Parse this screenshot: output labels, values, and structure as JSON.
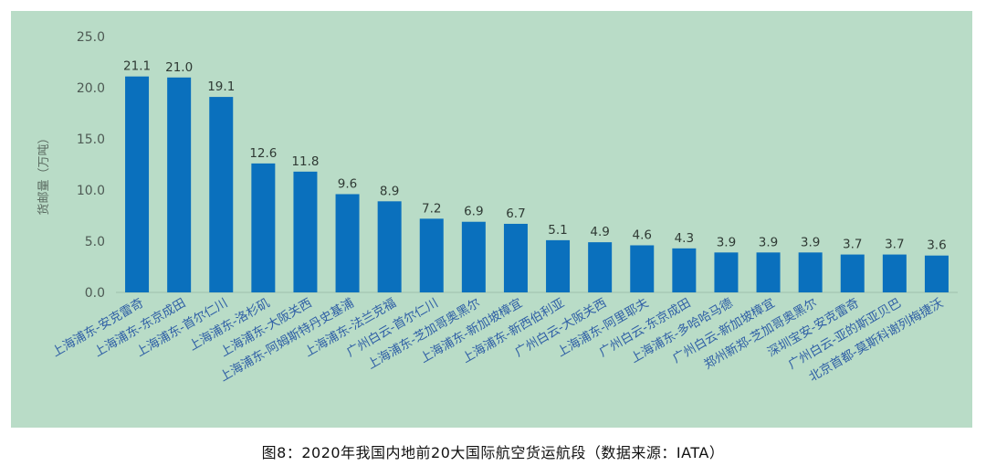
{
  "caption": "图8：2020年我国内地前20大国际航空货运航段（数据来源：IATA）",
  "chart_data": {
    "type": "bar",
    "title": "",
    "xlabel": "",
    "ylabel": "货邮量（万吨）",
    "ylim": [
      0,
      25
    ],
    "yticks": [
      "0.0",
      "5.0",
      "10.0",
      "15.0",
      "20.0",
      "25.0"
    ],
    "grid": false,
    "bar_color": "#0a70bd",
    "categories": [
      "上海浦东-安克雷奇",
      "上海浦东-东京成田",
      "上海浦东-首尔仁川",
      "上海浦东-洛杉矶",
      "上海浦东-大阪关西",
      "上海浦东-阿姆斯特丹史基浦",
      "上海浦东-法兰克福",
      "广州白云-首尔仁川",
      "上海浦东-芝加哥奥黑尔",
      "上海浦东-新加坡樟宜",
      "上海浦东-新西伯利亚",
      "广州白云-大阪关西",
      "上海浦东-阿里耶夫",
      "广州白云-东京成田",
      "上海浦东-多哈哈马德",
      "广州白云-新加坡樟宜",
      "郑州新郑-芝加哥奥黑尔",
      "深圳宝安-安克雷奇",
      "广州白云-亚的斯亚贝巴",
      "北京首都-莫斯科谢列梅捷沃"
    ],
    "values": [
      21.1,
      21.0,
      19.1,
      12.6,
      11.8,
      9.6,
      8.9,
      7.2,
      6.9,
      6.7,
      5.1,
      4.9,
      4.6,
      4.3,
      3.9,
      3.9,
      3.9,
      3.7,
      3.7,
      3.6
    ],
    "data_labels": [
      "21.1",
      "21.0",
      "19.1",
      "12.6",
      "11.8",
      "9.6",
      "8.9",
      "7.2",
      "6.9",
      "6.7",
      "5.1",
      "4.9",
      "4.6",
      "4.3",
      "3.9",
      "3.9",
      "3.9",
      "3.7",
      "3.7",
      "3.6"
    ]
  }
}
